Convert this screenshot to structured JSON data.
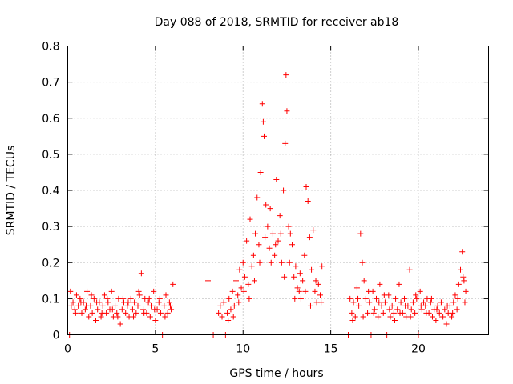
{
  "chart_data": {
    "type": "scatter",
    "title": "Day 088 of 2018, SRMTID for receiver ab18",
    "xlabel": "GPS time / hours",
    "ylabel": "SRMTID / TECUs",
    "xlim": [
      0,
      24
    ],
    "ylim": [
      0,
      0.8
    ],
    "xticks": [
      0,
      5,
      10,
      15,
      20
    ],
    "yticks": [
      0,
      0.1,
      0.2,
      0.3,
      0.4,
      0.5,
      0.6,
      0.7,
      0.8
    ],
    "xtick_labels": [
      "0",
      "5",
      "10",
      "15",
      "20"
    ],
    "ytick_labels": [
      "0",
      "0.1",
      "0.2",
      "0.3",
      "0.4",
      "0.5",
      "0.6",
      "0.7",
      "0.8"
    ],
    "grid": true,
    "marker": "+",
    "color": "#ff0000",
    "series": [
      {
        "name": "SRMTID",
        "points": [
          [
            0.1,
            0.0
          ],
          [
            0.2,
            0.08
          ],
          [
            0.3,
            0.09
          ],
          [
            0.4,
            0.07
          ],
          [
            0.5,
            0.11
          ],
          [
            0.6,
            0.08
          ],
          [
            0.7,
            0.1
          ],
          [
            0.8,
            0.06
          ],
          [
            0.9,
            0.09
          ],
          [
            1.0,
            0.07
          ],
          [
            1.1,
            0.12
          ],
          [
            1.2,
            0.05
          ],
          [
            1.3,
            0.08
          ],
          [
            1.4,
            0.06
          ],
          [
            1.5,
            0.1
          ],
          [
            1.6,
            0.04
          ],
          [
            1.7,
            0.07
          ],
          [
            1.8,
            0.09
          ],
          [
            1.9,
            0.05
          ],
          [
            2.0,
            0.08
          ],
          [
            2.1,
            0.11
          ],
          [
            2.2,
            0.06
          ],
          [
            2.3,
            0.09
          ],
          [
            2.4,
            0.07
          ],
          [
            2.5,
            0.12
          ],
          [
            2.6,
            0.05
          ],
          [
            2.7,
            0.08
          ],
          [
            2.8,
            0.06
          ],
          [
            2.9,
            0.1
          ],
          [
            3.0,
            0.03
          ],
          [
            3.1,
            0.07
          ],
          [
            3.2,
            0.09
          ],
          [
            3.3,
            0.06
          ],
          [
            3.4,
            0.08
          ],
          [
            3.5,
            0.05
          ],
          [
            3.6,
            0.1
          ],
          [
            3.7,
            0.07
          ],
          [
            3.8,
            0.09
          ],
          [
            3.9,
            0.06
          ],
          [
            4.0,
            0.08
          ],
          [
            4.1,
            0.11
          ],
          [
            4.2,
            0.17
          ],
          [
            4.3,
            0.07
          ],
          [
            4.4,
            0.1
          ],
          [
            4.5,
            0.06
          ],
          [
            4.6,
            0.09
          ],
          [
            4.7,
            0.05
          ],
          [
            4.8,
            0.08
          ],
          [
            4.9,
            0.12
          ],
          [
            5.0,
            0.04
          ],
          [
            5.1,
            0.07
          ],
          [
            5.2,
            0.09
          ],
          [
            5.3,
            0.06
          ],
          [
            5.4,
            0.0
          ],
          [
            5.5,
            0.08
          ],
          [
            5.6,
            0.11
          ],
          [
            5.7,
            0.06
          ],
          [
            5.8,
            0.09
          ],
          [
            5.9,
            0.07
          ],
          [
            6.0,
            0.14
          ],
          [
            0.15,
            0.12
          ],
          [
            0.45,
            0.06
          ],
          [
            0.75,
            0.09
          ],
          [
            1.05,
            0.08
          ],
          [
            1.35,
            0.11
          ],
          [
            1.65,
            0.09
          ],
          [
            1.95,
            0.06
          ],
          [
            2.25,
            0.1
          ],
          [
            2.55,
            0.07
          ],
          [
            2.85,
            0.05
          ],
          [
            3.15,
            0.1
          ],
          [
            3.45,
            0.09
          ],
          [
            3.75,
            0.05
          ],
          [
            4.05,
            0.12
          ],
          [
            4.35,
            0.06
          ],
          [
            4.65,
            0.1
          ],
          [
            4.95,
            0.07
          ],
          [
            5.25,
            0.1
          ],
          [
            5.55,
            0.05
          ],
          [
            5.85,
            0.08
          ],
          [
            8.0,
            0.15
          ],
          [
            8.3,
            0.0
          ],
          [
            8.6,
            0.06
          ],
          [
            8.7,
            0.08
          ],
          [
            8.8,
            0.05
          ],
          [
            8.9,
            0.09
          ],
          [
            9.0,
            0.0
          ],
          [
            9.1,
            0.06
          ],
          [
            9.2,
            0.1
          ],
          [
            9.3,
            0.07
          ],
          [
            9.4,
            0.12
          ],
          [
            9.5,
            0.08
          ],
          [
            9.6,
            0.15
          ],
          [
            9.7,
            0.11
          ],
          [
            9.8,
            0.18
          ],
          [
            9.9,
            0.13
          ],
          [
            10.0,
            0.2
          ],
          [
            10.1,
            0.16
          ],
          [
            10.2,
            0.26
          ],
          [
            10.3,
            0.14
          ],
          [
            10.4,
            0.32
          ],
          [
            10.5,
            0.19
          ],
          [
            10.6,
            0.22
          ],
          [
            10.7,
            0.28
          ],
          [
            10.8,
            0.38
          ],
          [
            10.9,
            0.25
          ],
          [
            11.0,
            0.45
          ],
          [
            11.1,
            0.64
          ],
          [
            11.15,
            0.59
          ],
          [
            11.2,
            0.55
          ],
          [
            11.3,
            0.36
          ],
          [
            11.4,
            0.3
          ],
          [
            11.5,
            0.24
          ],
          [
            11.6,
            0.2
          ],
          [
            11.7,
            0.28
          ],
          [
            11.8,
            0.22
          ],
          [
            11.9,
            0.43
          ],
          [
            12.0,
            0.26
          ],
          [
            12.1,
            0.33
          ],
          [
            12.2,
            0.2
          ],
          [
            12.3,
            0.4
          ],
          [
            12.4,
            0.53
          ],
          [
            12.45,
            0.72
          ],
          [
            12.5,
            0.62
          ],
          [
            12.6,
            0.3
          ],
          [
            12.7,
            0.28
          ],
          [
            12.8,
            0.25
          ],
          [
            12.9,
            0.16
          ],
          [
            13.0,
            0.19
          ],
          [
            13.1,
            0.13
          ],
          [
            13.2,
            0.12
          ],
          [
            13.3,
            0.1
          ],
          [
            13.4,
            0.15
          ],
          [
            13.5,
            0.22
          ],
          [
            13.6,
            0.41
          ],
          [
            13.7,
            0.37
          ],
          [
            13.8,
            0.27
          ],
          [
            13.9,
            0.18
          ],
          [
            14.0,
            0.29
          ],
          [
            14.1,
            0.12
          ],
          [
            14.2,
            0.09
          ],
          [
            14.3,
            0.14
          ],
          [
            14.4,
            0.11
          ],
          [
            14.5,
            0.19
          ],
          [
            9.15,
            0.04
          ],
          [
            9.45,
            0.05
          ],
          [
            9.75,
            0.09
          ],
          [
            10.05,
            0.12
          ],
          [
            10.35,
            0.1
          ],
          [
            10.65,
            0.15
          ],
          [
            10.95,
            0.2
          ],
          [
            11.25,
            0.27
          ],
          [
            11.55,
            0.35
          ],
          [
            11.85,
            0.25
          ],
          [
            12.15,
            0.28
          ],
          [
            12.35,
            0.16
          ],
          [
            12.65,
            0.2
          ],
          [
            12.95,
            0.1
          ],
          [
            13.25,
            0.17
          ],
          [
            13.55,
            0.12
          ],
          [
            13.85,
            0.08
          ],
          [
            14.15,
            0.15
          ],
          [
            14.45,
            0.09
          ],
          [
            16.0,
            0.0
          ],
          [
            16.1,
            0.1
          ],
          [
            16.2,
            0.06
          ],
          [
            16.3,
            0.09
          ],
          [
            16.4,
            0.05
          ],
          [
            16.5,
            0.13
          ],
          [
            16.6,
            0.08
          ],
          [
            16.7,
            0.28
          ],
          [
            16.8,
            0.2
          ],
          [
            16.9,
            0.15
          ],
          [
            17.0,
            0.1
          ],
          [
            17.1,
            0.06
          ],
          [
            17.2,
            0.09
          ],
          [
            17.3,
            0.0
          ],
          [
            17.4,
            0.12
          ],
          [
            17.5,
            0.07
          ],
          [
            17.6,
            0.1
          ],
          [
            17.7,
            0.05
          ],
          [
            17.8,
            0.14
          ],
          [
            17.9,
            0.08
          ],
          [
            18.0,
            0.06
          ],
          [
            18.1,
            0.09
          ],
          [
            18.2,
            0.0
          ],
          [
            18.3,
            0.11
          ],
          [
            18.4,
            0.05
          ],
          [
            18.5,
            0.08
          ],
          [
            18.6,
            0.06
          ],
          [
            18.7,
            0.1
          ],
          [
            18.8,
            0.07
          ],
          [
            18.9,
            0.14
          ],
          [
            19.0,
            0.09
          ],
          [
            19.1,
            0.06
          ],
          [
            19.2,
            0.1
          ],
          [
            19.3,
            0.05
          ],
          [
            19.4,
            0.08
          ],
          [
            19.5,
            0.18
          ],
          [
            19.6,
            0.07
          ],
          [
            19.7,
            0.09
          ],
          [
            19.8,
            0.06
          ],
          [
            19.9,
            0.1
          ],
          [
            20.0,
            0.0
          ],
          [
            20.1,
            0.12
          ],
          [
            20.2,
            0.07
          ],
          [
            20.3,
            0.09
          ],
          [
            20.4,
            0.08
          ],
          [
            20.5,
            0.1
          ],
          [
            20.6,
            0.06
          ],
          [
            20.7,
            0.09
          ],
          [
            20.8,
            0.05
          ],
          [
            20.9,
            0.07
          ],
          [
            21.0,
            0.04
          ],
          [
            21.1,
            0.08
          ],
          [
            21.2,
            0.06
          ],
          [
            21.3,
            0.09
          ],
          [
            21.4,
            0.05
          ],
          [
            21.5,
            0.07
          ],
          [
            21.6,
            0.03
          ],
          [
            21.7,
            0.06
          ],
          [
            21.8,
            0.08
          ],
          [
            21.9,
            0.05
          ],
          [
            22.0,
            0.09
          ],
          [
            22.1,
            0.11
          ],
          [
            22.2,
            0.07
          ],
          [
            22.3,
            0.14
          ],
          [
            22.4,
            0.18
          ],
          [
            22.5,
            0.23
          ],
          [
            22.6,
            0.15
          ],
          [
            22.7,
            0.12
          ],
          [
            16.25,
            0.04
          ],
          [
            16.55,
            0.1
          ],
          [
            16.85,
            0.05
          ],
          [
            17.15,
            0.12
          ],
          [
            17.45,
            0.06
          ],
          [
            17.75,
            0.09
          ],
          [
            18.05,
            0.11
          ],
          [
            18.35,
            0.07
          ],
          [
            18.65,
            0.04
          ],
          [
            18.95,
            0.06
          ],
          [
            19.25,
            0.08
          ],
          [
            19.55,
            0.05
          ],
          [
            19.85,
            0.11
          ],
          [
            20.15,
            0.08
          ],
          [
            20.45,
            0.06
          ],
          [
            20.75,
            0.1
          ],
          [
            21.05,
            0.07
          ],
          [
            21.35,
            0.05
          ],
          [
            21.65,
            0.08
          ],
          [
            21.95,
            0.06
          ],
          [
            22.25,
            0.1
          ],
          [
            22.55,
            0.16
          ],
          [
            22.65,
            0.09
          ]
        ]
      }
    ]
  }
}
